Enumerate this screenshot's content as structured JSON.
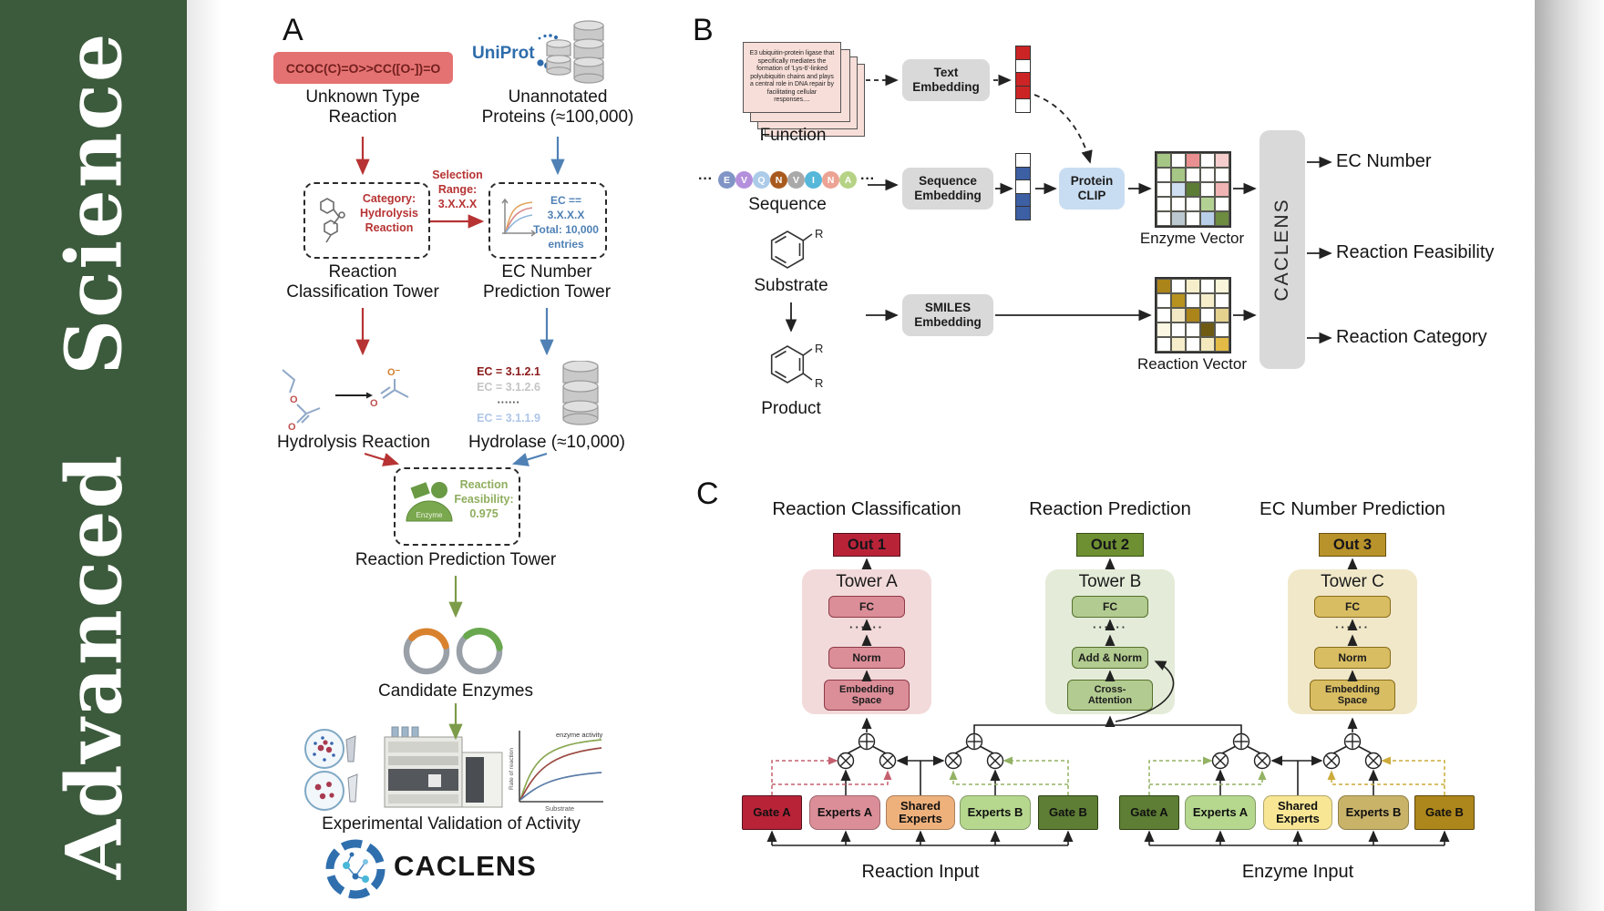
{
  "journal": {
    "name": "Advanced Science"
  },
  "brand": "CACLENS",
  "panelA": {
    "label": "A",
    "smiles": "CCOC(C)=O>>CC([O-])=O",
    "unknownReaction": "Unknown Type\nReaction",
    "uniprot": "UniProt",
    "unannotatedProteins": "Unannotated\nProteins (≈100,000)",
    "categoryBox": "Category:\nHydrolysis\nReaction",
    "selectionRange": "Selection\nRange:\n3.X.X.X",
    "ecBox": "EC == 3.X.X.X\nTotal: 10,000\nentries",
    "classificationTower": "Reaction\nClassification Tower",
    "ecTower": "EC Number\nPrediction Tower",
    "hydrolysisReaction": "Hydrolysis Reaction",
    "ecList": {
      "first": "EC = 3.1.2.1",
      "second": "EC = 3.1.2.6",
      "dots": "······",
      "last": "EC = 3.1.1.9"
    },
    "hydrolase": "Hydrolase (≈10,000)",
    "enzymeBadge": "Enzyme",
    "feasibility": "Reaction\nFeasibility:\n0.975",
    "predictionTower": "Reaction Prediction Tower",
    "candidateEnzymes": "Candidate Enzymes",
    "validation": "Experimental Validation of Activity",
    "atoms": {
      "o": "O",
      "oMinus": "O⁻"
    },
    "graph": {
      "title": "enzyme activity",
      "ylabel": "Rate of reaction",
      "xlabel": "Substrate"
    }
  },
  "panelB": {
    "label": "B",
    "functionCard": "E3 ubiquitin-protein ligase that specifically mediates the formation of 'Lys-6'-linked polyubiquitin chains and plays a central role in DNA repair by facil­itating cellular responses....",
    "functionLabel": "Function",
    "dotsLeft": "···",
    "dotsRight": "···",
    "sequence": [
      {
        "letter": "E",
        "color": "#8095c5"
      },
      {
        "letter": "V",
        "color": "#b48fdc"
      },
      {
        "letter": "Q",
        "color": "#abcbe9"
      },
      {
        "letter": "N",
        "color": "#a85a1e"
      },
      {
        "letter": "V",
        "color": "#a9a9a9"
      },
      {
        "letter": "I",
        "color": "#55b7d9"
      },
      {
        "letter": "N",
        "color": "#eca393"
      },
      {
        "letter": "A",
        "color": "#b6d385"
      }
    ],
    "sequenceLabel": "Sequence",
    "substrateLabel": "Substrate",
    "productLabel": "Product",
    "rGroup": "R",
    "textEmbedding": "Text\nEmbedding",
    "sequenceEmbedding": "Sequence\nEmbedding",
    "smilesEmbedding": "SMILES\nEmbedding",
    "proteinClip": "Protein\nCLIP",
    "caclensBlock": "CACLENS",
    "textVector": [
      "#cc2424",
      "#ffffff",
      "#cc2424",
      "#cc2424",
      "#ffffff"
    ],
    "sequenceVector": [
      "#ffffff",
      "#3d5fa3",
      "#ffffff",
      "#3d5fa3",
      "#3d5fa3"
    ],
    "enzymeVector": {
      "label": "Enzyme Vector",
      "cells": [
        [
          "#a5c684",
          "#ffffff",
          "#e98f8f",
          "#ffffff",
          "#f5cdcd"
        ],
        [
          "#ffffff",
          "#a5c684",
          "#ffffff",
          "#ffffff",
          "#ffffff"
        ],
        [
          "#ffffff",
          "#cfdef1",
          "#5c7c36",
          "#ffffff",
          "#f0b4b4"
        ],
        [
          "#ffffff",
          "#ffffff",
          "#ffffff",
          "#b3d193",
          "#ffffff"
        ],
        [
          "#ffffff",
          "#bcc8d0",
          "#ffffff",
          "#b9cfe9",
          "#6d8c40"
        ]
      ]
    },
    "reactionVector": {
      "label": "Reaction Vector",
      "cells": [
        [
          "#ab841a",
          "#ffffff",
          "#f6eecb",
          "#ffffff",
          "#faf4da"
        ],
        [
          "#ffffff",
          "#b8921e",
          "#ffffff",
          "#f6eecb",
          "#ffffff"
        ],
        [
          "#ffffff",
          "#f2e9c4",
          "#ab841a",
          "#ffffff",
          "#e5d18e"
        ],
        [
          "#fbf7e3",
          "#ffffff",
          "#ffffff",
          "#6e5a12",
          "#ffffff"
        ],
        [
          "#ffffff",
          "#f6eecb",
          "#ffffff",
          "#f3e9bd",
          "#e2ba45"
        ]
      ]
    },
    "outputs": [
      "EC Number",
      "Reaction Feasibility",
      "Reaction Category"
    ]
  },
  "panelC": {
    "label": "C",
    "headings": [
      "Reaction Classification",
      "Reaction Prediction",
      "EC Number Prediction"
    ],
    "towers": [
      {
        "out": "Out 1",
        "name": "Tower A",
        "fc": "FC",
        "dots": "······",
        "mid": "Norm",
        "bottom": "Embedding\nSpace"
      },
      {
        "out": "Out 2",
        "name": "Tower B",
        "fc": "FC",
        "dots": "······",
        "mid": "Add & Norm",
        "bottom": "Cross-\nAttention"
      },
      {
        "out": "Out 3",
        "name": "Tower C",
        "fc": "FC",
        "dots": "······",
        "mid": "Norm",
        "bottom": "Embedding\nSpace"
      }
    ],
    "groups": [
      {
        "gateA": "Gate A",
        "expertsA": "Experts A",
        "shared": "Shared\nExperts",
        "expertsB": "Experts B",
        "gateB": "Gate B",
        "input": "Reaction Input"
      },
      {
        "gateA": "Gate A",
        "expertsA": "Experts A",
        "shared": "Shared\nExperts",
        "expertsB": "Experts B",
        "gateB": "Gate B",
        "input": "Enzyme Input"
      }
    ]
  },
  "colors": {
    "sidebar": "#3c5a3c",
    "accentRed": "#b73333",
    "accentBlue": "#4f81b5",
    "accentGreen": "#7d9c4a",
    "out1": "#b92338",
    "out2": "#6f9032",
    "out3": "#b8922a",
    "sharedOrange": "#eeb17c",
    "sharedYellow": "#f8e694"
  },
  "icons": {
    "uniprot-swirl": "dotted-circle",
    "database": "cylinder-stack",
    "molecule": "hexagon-chain",
    "activity-curves": "sigmoid-axes",
    "enzyme": "green-dome",
    "plasmid": "ring-with-arc",
    "sample-dish": "circle-dots",
    "hplc-instrument": "stacked-machine",
    "activity-graph": "curve-axes",
    "caclens-logo": "segmented-ring-molecule",
    "benzene": "hexagon"
  }
}
